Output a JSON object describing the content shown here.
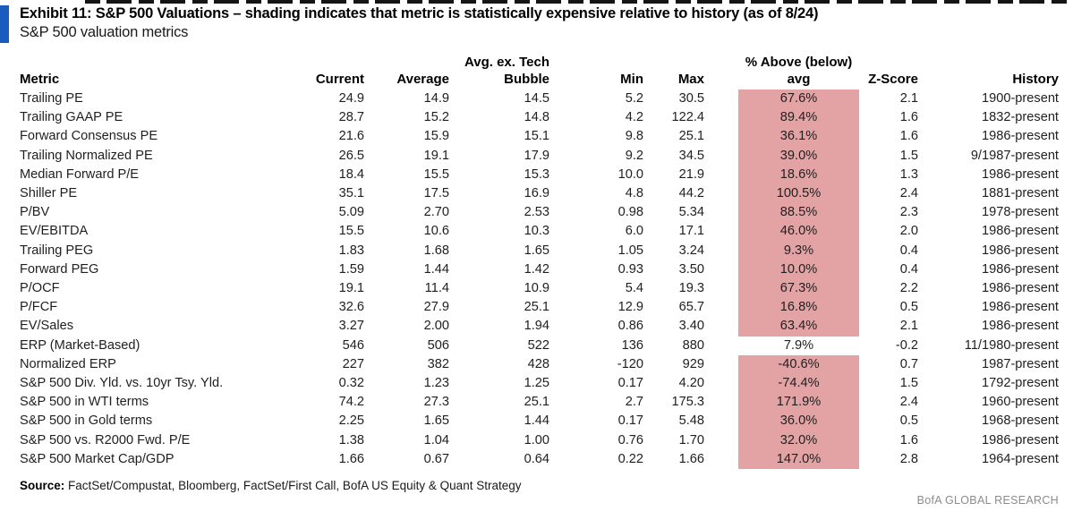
{
  "exhibit": {
    "title": "Exhibit 11: S&P 500 Valuations – shading indicates that metric is statistically expensive relative to history (as of 8/24)",
    "subtitle": "S&P 500 valuation metrics"
  },
  "colors": {
    "accent_blue": "#1a5cbe",
    "shading_pink": "#e3a3a5"
  },
  "table": {
    "headers": {
      "metric": "Metric",
      "current": "Current",
      "average": "Average",
      "avg_ex_line1": "Avg. ex. Tech",
      "avg_ex_line2": "Bubble",
      "min": "Min",
      "max": "Max",
      "pct_line1": "% Above (below)",
      "pct_line2": "avg",
      "zscore": "Z-Score",
      "history": "History"
    },
    "rows": [
      {
        "metric": "Trailing PE",
        "current": "24.9",
        "average": "14.9",
        "avg_ex": "14.5",
        "min": "5.2",
        "max": "30.5",
        "pct_above": "67.6%",
        "zscore": "2.1",
        "history": "1900-present",
        "shaded": true
      },
      {
        "metric": "Trailing GAAP PE",
        "current": "28.7",
        "average": "15.2",
        "avg_ex": "14.8",
        "min": "4.2",
        "max": "122.4",
        "pct_above": "89.4%",
        "zscore": "1.6",
        "history": "1832-present",
        "shaded": true
      },
      {
        "metric": "Forward Consensus PE",
        "current": "21.6",
        "average": "15.9",
        "avg_ex": "15.1",
        "min": "9.8",
        "max": "25.1",
        "pct_above": "36.1%",
        "zscore": "1.6",
        "history": "1986-present",
        "shaded": true
      },
      {
        "metric": "Trailing Normalized PE",
        "current": "26.5",
        "average": "19.1",
        "avg_ex": "17.9",
        "min": "9.2",
        "max": "34.5",
        "pct_above": "39.0%",
        "zscore": "1.5",
        "history": "9/1987-present",
        "shaded": true
      },
      {
        "metric": "Median Forward P/E",
        "current": "18.4",
        "average": "15.5",
        "avg_ex": "15.3",
        "min": "10.0",
        "max": "21.9",
        "pct_above": "18.6%",
        "zscore": "1.3",
        "history": "1986-present",
        "shaded": true
      },
      {
        "metric": "Shiller PE",
        "current": "35.1",
        "average": "17.5",
        "avg_ex": "16.9",
        "min": "4.8",
        "max": "44.2",
        "pct_above": "100.5%",
        "zscore": "2.4",
        "history": "1881-present",
        "shaded": true
      },
      {
        "metric": "P/BV",
        "current": "5.09",
        "average": "2.70",
        "avg_ex": "2.53",
        "min": "0.98",
        "max": "5.34",
        "pct_above": "88.5%",
        "zscore": "2.3",
        "history": "1978-present",
        "shaded": true
      },
      {
        "metric": "EV/EBITDA",
        "current": "15.5",
        "average": "10.6",
        "avg_ex": "10.3",
        "min": "6.0",
        "max": "17.1",
        "pct_above": "46.0%",
        "zscore": "2.0",
        "history": "1986-present",
        "shaded": true
      },
      {
        "metric": "Trailing PEG",
        "current": "1.83",
        "average": "1.68",
        "avg_ex": "1.65",
        "min": "1.05",
        "max": "3.24",
        "pct_above": "9.3%",
        "zscore": "0.4",
        "history": "1986-present",
        "shaded": true
      },
      {
        "metric": "Forward PEG",
        "current": "1.59",
        "average": "1.44",
        "avg_ex": "1.42",
        "min": "0.93",
        "max": "3.50",
        "pct_above": "10.0%",
        "zscore": "0.4",
        "history": "1986-present",
        "shaded": true
      },
      {
        "metric": "P/OCF",
        "current": "19.1",
        "average": "11.4",
        "avg_ex": "10.9",
        "min": "5.4",
        "max": "19.3",
        "pct_above": "67.3%",
        "zscore": "2.2",
        "history": "1986-present",
        "shaded": true
      },
      {
        "metric": "P/FCF",
        "current": "32.6",
        "average": "27.9",
        "avg_ex": "25.1",
        "min": "12.9",
        "max": "65.7",
        "pct_above": "16.8%",
        "zscore": "0.5",
        "history": "1986-present",
        "shaded": true
      },
      {
        "metric": "EV/Sales",
        "current": "3.27",
        "average": "2.00",
        "avg_ex": "1.94",
        "min": "0.86",
        "max": "3.40",
        "pct_above": "63.4%",
        "zscore": "2.1",
        "history": "1986-present",
        "shaded": true
      },
      {
        "metric": "ERP (Market-Based)",
        "current": "546",
        "average": "506",
        "avg_ex": "522",
        "min": "136",
        "max": "880",
        "pct_above": "7.9%",
        "zscore": "-0.2",
        "history": "11/1980-present",
        "shaded": false
      },
      {
        "metric": "Normalized ERP",
        "current": "227",
        "average": "382",
        "avg_ex": "428",
        "min": "-120",
        "max": "929",
        "pct_above": "-40.6%",
        "zscore": "0.7",
        "history": "1987-present",
        "shaded": true
      },
      {
        "metric": "S&P 500 Div. Yld. vs. 10yr Tsy. Yld.",
        "current": "0.32",
        "average": "1.23",
        "avg_ex": "1.25",
        "min": "0.17",
        "max": "4.20",
        "pct_above": "-74.4%",
        "zscore": "1.5",
        "history": "1792-present",
        "shaded": true
      },
      {
        "metric": "S&P 500 in WTI terms",
        "current": "74.2",
        "average": "27.3",
        "avg_ex": "25.1",
        "min": "2.7",
        "max": "175.3",
        "pct_above": "171.9%",
        "zscore": "2.4",
        "history": "1960-present",
        "shaded": true
      },
      {
        "metric": "S&P 500 in Gold terms",
        "current": "2.25",
        "average": "1.65",
        "avg_ex": "1.44",
        "min": "0.17",
        "max": "5.48",
        "pct_above": "36.0%",
        "zscore": "0.5",
        "history": "1968-present",
        "shaded": true
      },
      {
        "metric": "S&P 500 vs. R2000 Fwd. P/E",
        "current": "1.38",
        "average": "1.04",
        "avg_ex": "1.00",
        "min": "0.76",
        "max": "1.70",
        "pct_above": "32.0%",
        "zscore": "1.6",
        "history": "1986-present",
        "shaded": true
      },
      {
        "metric": "S&P 500 Market Cap/GDP",
        "current": "1.66",
        "average": "0.67",
        "avg_ex": "0.64",
        "min": "0.22",
        "max": "1.66",
        "pct_above": "147.0%",
        "zscore": "2.8",
        "history": "1964-present",
        "shaded": true
      }
    ]
  },
  "footer": {
    "source_label": "Source:",
    "source_text": " FactSet/Compustat, Bloomberg, FactSet/First Call, BofA US Equity & Quant Strategy",
    "branding": "BofA GLOBAL RESEARCH"
  },
  "chart_data": {
    "type": "table",
    "title": "S&P 500 valuation metrics (as of 8/24)",
    "columns": [
      "Metric",
      "Current",
      "Average",
      "Avg. ex. Tech Bubble",
      "Min",
      "Max",
      "% Above (below) avg",
      "Z-Score",
      "History"
    ],
    "shaded_note": "Pink shading in '% Above (below) avg' column marks metrics statistically expensive vs. history; all rows shaded except ERP (Market-Based)",
    "rows": [
      [
        "Trailing PE",
        24.9,
        14.9,
        14.5,
        5.2,
        30.5,
        "67.6%",
        2.1,
        "1900-present"
      ],
      [
        "Trailing GAAP PE",
        28.7,
        15.2,
        14.8,
        4.2,
        122.4,
        "89.4%",
        1.6,
        "1832-present"
      ],
      [
        "Forward Consensus PE",
        21.6,
        15.9,
        15.1,
        9.8,
        25.1,
        "36.1%",
        1.6,
        "1986-present"
      ],
      [
        "Trailing Normalized PE",
        26.5,
        19.1,
        17.9,
        9.2,
        34.5,
        "39.0%",
        1.5,
        "9/1987-present"
      ],
      [
        "Median Forward P/E",
        18.4,
        15.5,
        15.3,
        10.0,
        21.9,
        "18.6%",
        1.3,
        "1986-present"
      ],
      [
        "Shiller PE",
        35.1,
        17.5,
        16.9,
        4.8,
        44.2,
        "100.5%",
        2.4,
        "1881-present"
      ],
      [
        "P/BV",
        5.09,
        2.7,
        2.53,
        0.98,
        5.34,
        "88.5%",
        2.3,
        "1978-present"
      ],
      [
        "EV/EBITDA",
        15.5,
        10.6,
        10.3,
        6.0,
        17.1,
        "46.0%",
        2.0,
        "1986-present"
      ],
      [
        "Trailing PEG",
        1.83,
        1.68,
        1.65,
        1.05,
        3.24,
        "9.3%",
        0.4,
        "1986-present"
      ],
      [
        "Forward PEG",
        1.59,
        1.44,
        1.42,
        0.93,
        3.5,
        "10.0%",
        0.4,
        "1986-present"
      ],
      [
        "P/OCF",
        19.1,
        11.4,
        10.9,
        5.4,
        19.3,
        "67.3%",
        2.2,
        "1986-present"
      ],
      [
        "P/FCF",
        32.6,
        27.9,
        25.1,
        12.9,
        65.7,
        "16.8%",
        0.5,
        "1986-present"
      ],
      [
        "EV/Sales",
        3.27,
        2.0,
        1.94,
        0.86,
        3.4,
        "63.4%",
        2.1,
        "1986-present"
      ],
      [
        "ERP (Market-Based)",
        546,
        506,
        522,
        136,
        880,
        "7.9%",
        -0.2,
        "11/1980-present"
      ],
      [
        "Normalized ERP",
        227,
        382,
        428,
        -120,
        929,
        "-40.6%",
        0.7,
        "1987-present"
      ],
      [
        "S&P 500 Div. Yld. vs. 10yr Tsy. Yld.",
        0.32,
        1.23,
        1.25,
        0.17,
        4.2,
        "-74.4%",
        1.5,
        "1792-present"
      ],
      [
        "S&P 500 in WTI terms",
        74.2,
        27.3,
        25.1,
        2.7,
        175.3,
        "171.9%",
        2.4,
        "1960-present"
      ],
      [
        "S&P 500 in Gold terms",
        2.25,
        1.65,
        1.44,
        0.17,
        5.48,
        "36.0%",
        0.5,
        "1968-present"
      ],
      [
        "S&P 500 vs. R2000 Fwd. P/E",
        1.38,
        1.04,
        1.0,
        0.76,
        1.7,
        "32.0%",
        1.6,
        "1986-present"
      ],
      [
        "S&P 500 Market Cap/GDP",
        1.66,
        0.67,
        0.64,
        0.22,
        1.66,
        "147.0%",
        2.8,
        "1964-present"
      ]
    ]
  }
}
